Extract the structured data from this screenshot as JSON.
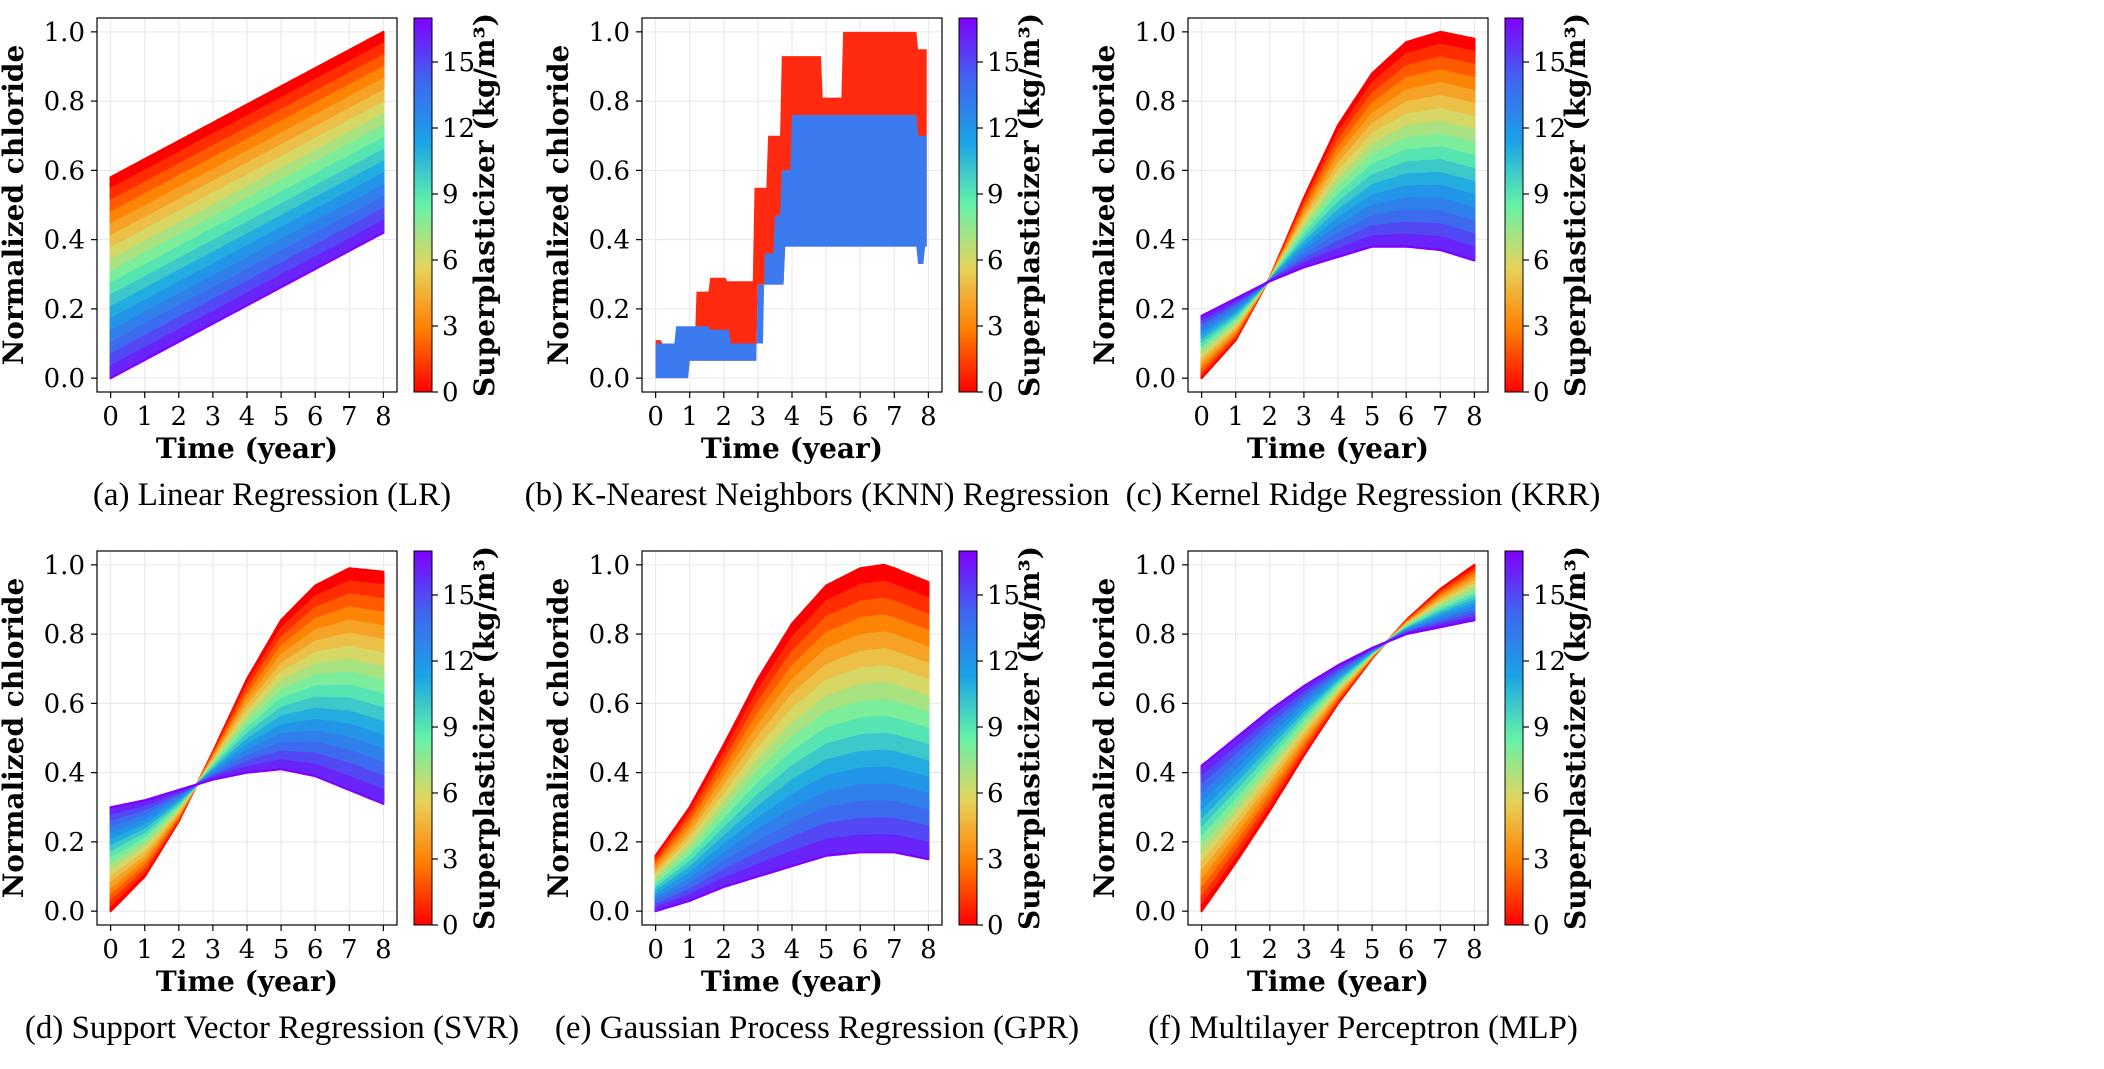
{
  "colorbar": {
    "label": "Superplasticizer (kg/m³)",
    "ticks": [
      "0",
      "3",
      "6",
      "9",
      "12",
      "15"
    ],
    "vmin": 0,
    "vmax": 17,
    "colors": [
      "#ff0000",
      "#ff7f00",
      "#e6d35c",
      "#64f2a8",
      "#1aa3e6",
      "#3f67f0",
      "#8000ff"
    ]
  },
  "chart_data": [
    {
      "type": "area",
      "model": "lr",
      "caption": "(a) Linear Regression (LR)",
      "xlabel": "Time (year)",
      "ylabel": "Normalized chloride",
      "xticks": [
        "0",
        "1",
        "2",
        "3",
        "4",
        "5",
        "6",
        "7",
        "8"
      ],
      "yticks": [
        "0.0",
        "0.2",
        "0.4",
        "0.6",
        "0.8",
        "1.0"
      ],
      "xlim": [
        -0.4,
        8.4
      ],
      "ylim": [
        -0.04,
        1.04
      ],
      "series_envelope": {
        "low_sp_start": 0.58,
        "low_sp_end": 1.0,
        "high_sp_start": 0.0,
        "high_sp_end": 0.42
      }
    },
    {
      "type": "area",
      "model": "knn",
      "caption": "(b) K-Nearest Neighbors (KNN) Regression",
      "xlabel": "Time (year)",
      "ylabel": "Normalized chloride",
      "xticks": [
        "0",
        "1",
        "2",
        "3",
        "4",
        "5",
        "6",
        "7",
        "8"
      ],
      "yticks": [
        "0.0",
        "0.2",
        "0.4",
        "0.6",
        "0.8",
        "1.0"
      ],
      "xlim": [
        -0.4,
        8.4
      ],
      "ylim": [
        -0.04,
        1.04
      ],
      "red_upper": [
        [
          0,
          0.11
        ],
        [
          0.2,
          0.1
        ],
        [
          1.2,
          0.25
        ],
        [
          1.6,
          0.29
        ],
        [
          2.1,
          0.28
        ],
        [
          2.9,
          0.55
        ],
        [
          3.3,
          0.7
        ],
        [
          3.7,
          0.93
        ],
        [
          4.9,
          0.81
        ],
        [
          5.5,
          1.0
        ],
        [
          7.7,
          0.95
        ],
        [
          7.9,
          0.95
        ]
      ],
      "blue_upper": [
        [
          0,
          0.1
        ],
        [
          0.6,
          0.15
        ],
        [
          1.2,
          0.15
        ],
        [
          1.6,
          0.14
        ],
        [
          2.2,
          0.1
        ],
        [
          3.2,
          0.36
        ],
        [
          3.5,
          0.47
        ],
        [
          3.7,
          0.6
        ],
        [
          4.0,
          0.76
        ],
        [
          7.7,
          0.7
        ],
        [
          7.9,
          0.7
        ]
      ],
      "blue_lower": [
        [
          0,
          0.0
        ],
        [
          1.0,
          0.05
        ],
        [
          2.0,
          0.05
        ],
        [
          3.0,
          0.27
        ],
        [
          3.8,
          0.38
        ],
        [
          7.7,
          0.33
        ],
        [
          7.9,
          0.38
        ]
      ]
    },
    {
      "type": "area",
      "model": "krr",
      "caption": "(c) Kernel Ridge Regression (KRR)",
      "xlabel": "Time (year)",
      "ylabel": "Normalized chloride",
      "xticks": [
        "0",
        "1",
        "2",
        "3",
        "4",
        "5",
        "6",
        "7",
        "8"
      ],
      "yticks": [
        "0.0",
        "0.2",
        "0.4",
        "0.6",
        "0.8",
        "1.0"
      ],
      "xlim": [
        -0.4,
        8.4
      ],
      "ylim": [
        -0.04,
        1.04
      ],
      "low_sp_curve": [
        [
          0,
          0.0
        ],
        [
          1,
          0.11
        ],
        [
          2,
          0.29
        ],
        [
          3,
          0.52
        ],
        [
          4,
          0.73
        ],
        [
          5,
          0.88
        ],
        [
          6,
          0.97
        ],
        [
          7,
          1.0
        ],
        [
          8,
          0.98
        ]
      ],
      "high_sp_curve": [
        [
          0,
          0.18
        ],
        [
          1,
          0.23
        ],
        [
          2,
          0.28
        ],
        [
          3,
          0.32
        ],
        [
          4,
          0.35
        ],
        [
          5,
          0.38
        ],
        [
          6,
          0.38
        ],
        [
          7,
          0.37
        ],
        [
          8,
          0.34
        ]
      ]
    },
    {
      "type": "area",
      "model": "svr",
      "caption": "(d) Support Vector Regression (SVR)",
      "xlabel": "Time (year)",
      "ylabel": "Normalized chloride",
      "xticks": [
        "0",
        "1",
        "2",
        "3",
        "4",
        "5",
        "6",
        "7",
        "8"
      ],
      "yticks": [
        "0.0",
        "0.2",
        "0.4",
        "0.6",
        "0.8",
        "1.0"
      ],
      "xlim": [
        -0.4,
        8.4
      ],
      "ylim": [
        -0.04,
        1.04
      ],
      "low_sp_curve": [
        [
          0,
          0.0
        ],
        [
          1,
          0.1
        ],
        [
          2,
          0.26
        ],
        [
          3,
          0.46
        ],
        [
          4,
          0.67
        ],
        [
          5,
          0.84
        ],
        [
          6,
          0.94
        ],
        [
          7,
          0.99
        ],
        [
          8,
          0.98
        ]
      ],
      "high_sp_curve": [
        [
          0,
          0.3
        ],
        [
          1,
          0.32
        ],
        [
          2,
          0.35
        ],
        [
          3,
          0.38
        ],
        [
          4,
          0.4
        ],
        [
          5,
          0.41
        ],
        [
          6,
          0.39
        ],
        [
          7,
          0.35
        ],
        [
          8,
          0.31
        ]
      ]
    },
    {
      "type": "area",
      "model": "gpr",
      "caption": "(e) Gaussian Process Regression (GPR)",
      "xlabel": "Time (year)",
      "ylabel": "Normalized chloride",
      "xticks": [
        "0",
        "1",
        "2",
        "3",
        "4",
        "5",
        "6",
        "7",
        "8"
      ],
      "yticks": [
        "0.0",
        "0.2",
        "0.4",
        "0.6",
        "0.8",
        "1.0"
      ],
      "xlim": [
        -0.4,
        8.4
      ],
      "ylim": [
        -0.04,
        1.04
      ],
      "low_sp_curve": [
        [
          0,
          0.16
        ],
        [
          1,
          0.3
        ],
        [
          2,
          0.48
        ],
        [
          3,
          0.67
        ],
        [
          4,
          0.83
        ],
        [
          5,
          0.94
        ],
        [
          6,
          0.99
        ],
        [
          6.7,
          1.0
        ],
        [
          7,
          0.99
        ],
        [
          8,
          0.95
        ]
      ],
      "high_sp_curve": [
        [
          0,
          0.0
        ],
        [
          1,
          0.03
        ],
        [
          2,
          0.07
        ],
        [
          3,
          0.1
        ],
        [
          4,
          0.13
        ],
        [
          5,
          0.16
        ],
        [
          6,
          0.17
        ],
        [
          7,
          0.17
        ],
        [
          8,
          0.15
        ]
      ]
    },
    {
      "type": "area",
      "model": "mlp",
      "caption": "(f) Multilayer Perceptron (MLP)",
      "xlabel": "Time (year)",
      "ylabel": "Normalized chloride",
      "xticks": [
        "0",
        "1",
        "2",
        "3",
        "4",
        "5",
        "6",
        "7",
        "8"
      ],
      "yticks": [
        "0.0",
        "0.2",
        "0.4",
        "0.6",
        "0.8",
        "1.0"
      ],
      "xlim": [
        -0.4,
        8.4
      ],
      "ylim": [
        -0.04,
        1.04
      ],
      "low_sp_curve": [
        [
          0,
          0.0
        ],
        [
          1,
          0.14
        ],
        [
          2,
          0.29
        ],
        [
          3,
          0.45
        ],
        [
          4,
          0.6
        ],
        [
          5,
          0.73
        ],
        [
          6,
          0.84
        ],
        [
          7,
          0.93
        ],
        [
          8,
          1.0
        ]
      ],
      "high_sp_curve": [
        [
          0,
          0.42
        ],
        [
          1,
          0.5
        ],
        [
          2,
          0.58
        ],
        [
          3,
          0.65
        ],
        [
          4,
          0.71
        ],
        [
          5,
          0.76
        ],
        [
          6,
          0.8
        ],
        [
          7,
          0.82
        ],
        [
          8,
          0.84
        ]
      ]
    }
  ]
}
